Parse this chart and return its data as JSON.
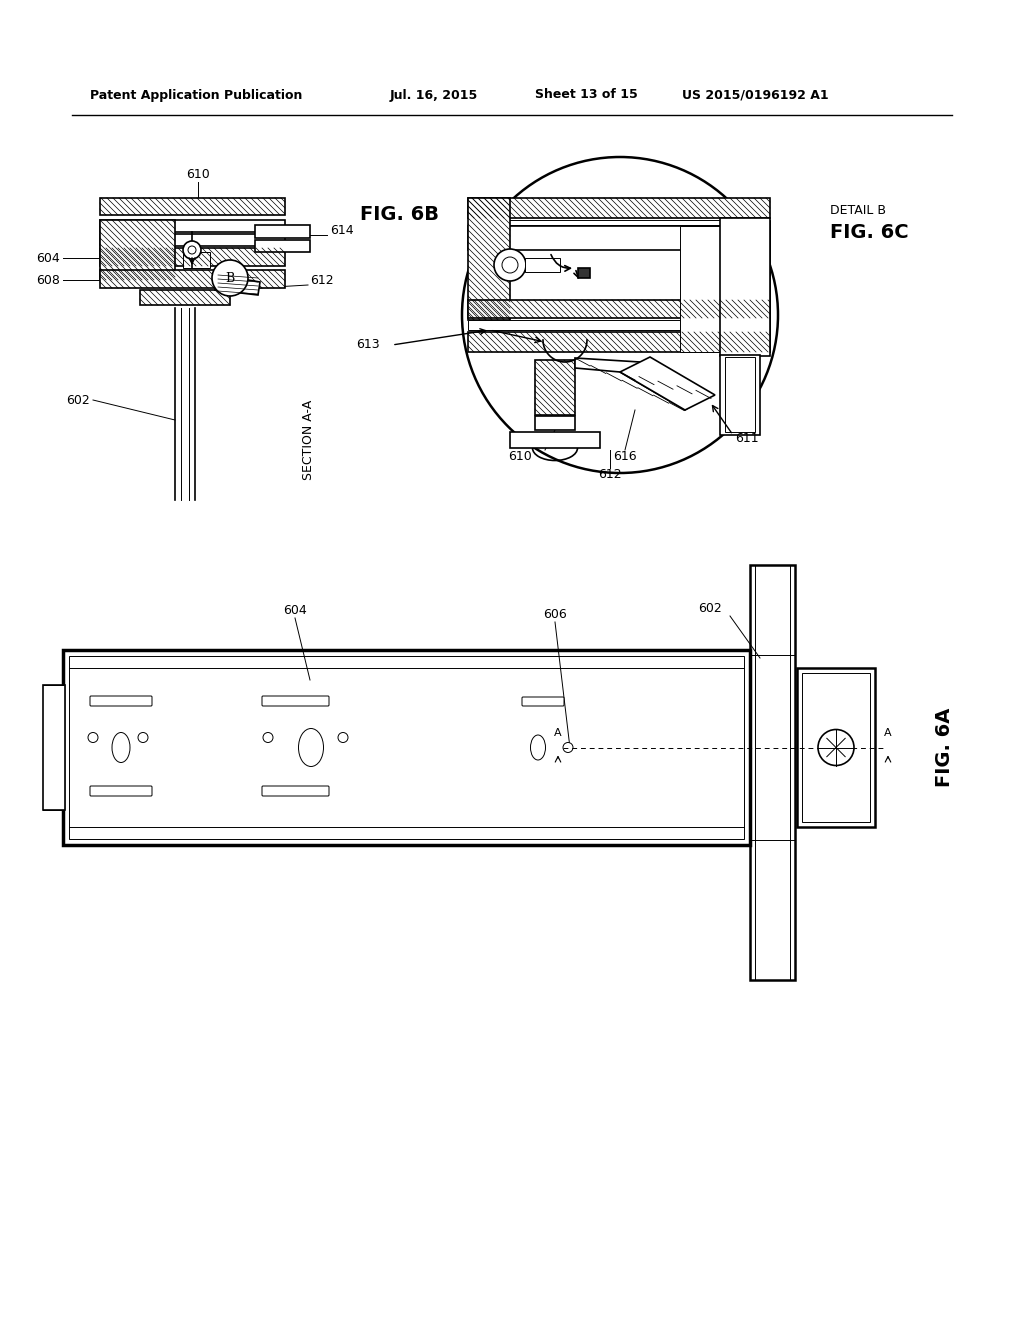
{
  "bg_color": "#ffffff",
  "line_color": "#000000",
  "header_text": "Patent Application Publication",
  "header_date": "Jul. 16, 2015",
  "header_sheet": "Sheet 13 of 15",
  "header_patent": "US 2015/0196192 A1"
}
